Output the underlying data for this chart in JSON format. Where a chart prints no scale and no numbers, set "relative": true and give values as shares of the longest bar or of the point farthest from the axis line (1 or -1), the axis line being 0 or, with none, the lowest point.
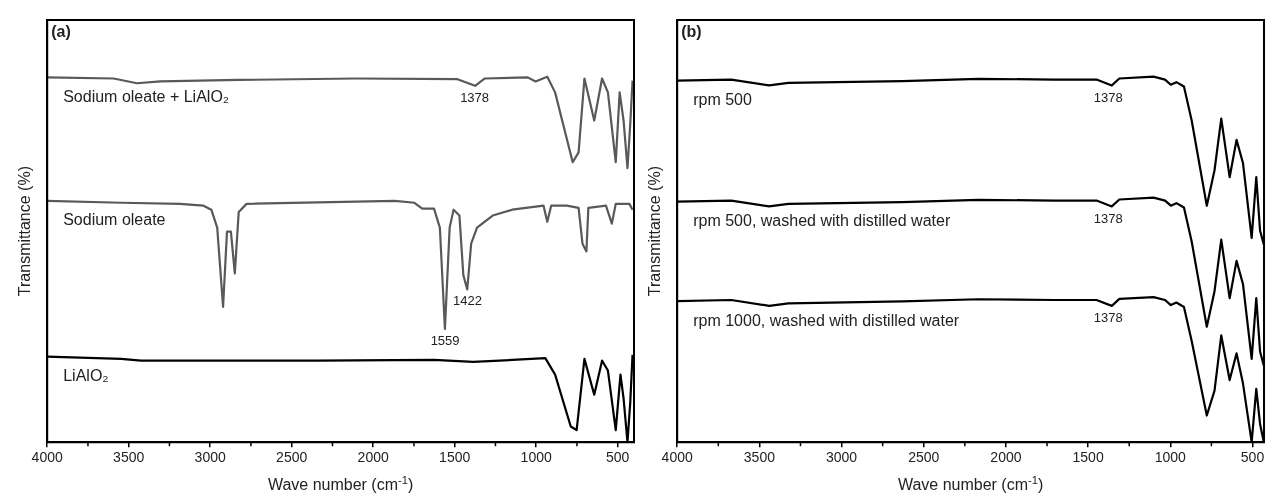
{
  "chart_data": [
    {
      "type": "line",
      "relative": true,
      "xlabel": "Wave number (cm$^{-1}$)",
      "ylabel": "Transmittance (%)",
      "xlim": [
        4000,
        400
      ],
      "xticks": [
        4000,
        {
          "value": 3750,
          "label": null
        },
        3500,
        {
          "value": 3250,
          "label": null
        },
        3000,
        {
          "value": 2750,
          "label": null
        },
        2500,
        {
          "value": 2250,
          "label": null
        },
        2000,
        {
          "value": 1750,
          "label": null
        },
        1500,
        {
          "value": 1250,
          "label": null
        },
        1000,
        {
          "value": 750,
          "label": null
        },
        500
      ],
      "annotations": [
        "(a)",
        {
          "text": "1378",
          "x": 1378,
          "y": 0.975
        },
        {
          "text": "1559",
          "x": 1559,
          "y": 0.31
        },
        {
          "text": "1422",
          "x": 1422,
          "y": 0.418
        }
      ],
      "series": [
        {
          "name": "Sodium oleate + LiAlO₂",
          "color": "#595959",
          "x": [
            4000,
            3592,
            3449,
            3305,
            2825,
            2106,
            1483,
            1375,
            1315,
            1052,
            1004,
            932,
            884,
            776,
            740,
            704,
            644,
            596,
            560,
            512,
            488,
            464,
            440,
            423,
            409
          ],
          "values": [
            0.998,
            0.995,
            0.982,
            0.987,
            0.991,
            0.995,
            0.993,
            0.975,
            0.995,
            0.998,
            0.987,
            1.0,
            0.957,
            0.766,
            0.793,
            0.995,
            0.88,
            0.995,
            0.957,
            0.766,
            0.957,
            0.88,
            0.75,
            0.87,
            0.989
          ]
        },
        {
          "name": "Sodium oleate",
          "color": "#595959",
          "x": [
            4000,
            3545,
            3185,
            3041,
            2993,
            2957,
            2921,
            2897,
            2873,
            2849,
            2825,
            2777,
            1867,
            1747,
            1699,
            1627,
            1591,
            1560,
            1531,
            1507,
            1471,
            1447,
            1423,
            1399,
            1363,
            1267,
            1147,
            955,
            932,
            908,
            812,
            740,
            716,
            692,
            680,
            572,
            536,
            512,
            428,
            409
          ],
          "values": [
            0.66,
            0.655,
            0.652,
            0.647,
            0.636,
            0.587,
            0.37,
            0.576,
            0.576,
            0.462,
            0.63,
            0.652,
            0.66,
            0.655,
            0.639,
            0.639,
            0.587,
            0.31,
            0.587,
            0.636,
            0.62,
            0.457,
            0.418,
            0.543,
            0.587,
            0.62,
            0.636,
            0.647,
            0.603,
            0.647,
            0.647,
            0.641,
            0.543,
            0.522,
            0.641,
            0.647,
            0.598,
            0.652,
            0.652,
            0.636
          ]
        },
        {
          "name": "LiAlO₂",
          "color": "#000000",
          "x": [
            4000,
            3545,
            3425,
            2346,
            1627,
            1387,
            1147,
            944,
            884,
            788,
            752,
            704,
            644,
            596,
            560,
            512,
            483,
            464,
            440,
            423,
            409
          ],
          "values": [
            0.234,
            0.228,
            0.223,
            0.223,
            0.225,
            0.22,
            0.225,
            0.23,
            0.185,
            0.043,
            0.033,
            0.228,
            0.13,
            0.223,
            0.196,
            0.033,
            0.185,
            0.12,
            0,
            0.109,
            0.239
          ]
        }
      ]
    },
    {
      "type": "line",
      "relative": true,
      "xlabel": "Wave number (cm$^{-1}$)",
      "ylabel": "Transmittance (%)",
      "xlim": [
        4000,
        430
      ],
      "xticks": [
        4000,
        {
          "value": 3750,
          "label": null
        },
        3500,
        {
          "value": 3250,
          "label": null
        },
        3000,
        {
          "value": 2750,
          "label": null
        },
        2500,
        {
          "value": 2250,
          "label": null
        },
        2000,
        {
          "value": 1750,
          "label": null
        },
        1500,
        {
          "value": 1250,
          "label": null
        },
        1000,
        {
          "value": 750,
          "label": null
        },
        500
      ],
      "annotations": [
        "(b)",
        {
          "text": "1378",
          "x": 1378,
          "y": 0.976
        },
        {
          "text": "1378",
          "x": 1378,
          "y": 0.645
        },
        {
          "text": "1378",
          "x": 1378,
          "y": 0.373
        }
      ],
      "series": [
        {
          "name": "rpm 500",
          "color": "#000000",
          "x": [
            4000,
            3671,
            3440,
            3324,
            2630,
            2167,
            1704,
            1449,
            1356,
            1310,
            1102,
            1032,
            997,
            963,
            917,
            870,
            778,
            731,
            690,
            639,
            597,
            558,
            505,
            477,
            454,
            431
          ],
          "values": [
            0.989,
            0.992,
            0.976,
            0.983,
            0.988,
            0.994,
            0.992,
            0.992,
            0.976,
            0.995,
            1.0,
            0.992,
            0.978,
            0.985,
            0.973,
            0.88,
            0.647,
            0.744,
            0.885,
            0.725,
            0.827,
            0.764,
            0.559,
            0.725,
            0.579,
            0.54
          ]
        },
        {
          "name": "rpm 500, washed with distilled water",
          "color": "#000000",
          "x": [
            4000,
            3671,
            3440,
            3324,
            2630,
            2167,
            1704,
            1449,
            1356,
            1310,
            1102,
            1032,
            997,
            963,
            917,
            870,
            778,
            731,
            690,
            639,
            597,
            558,
            505,
            477,
            454,
            431
          ],
          "values": [
            0.658,
            0.661,
            0.645,
            0.652,
            0.657,
            0.663,
            0.661,
            0.661,
            0.645,
            0.664,
            0.669,
            0.661,
            0.647,
            0.654,
            0.642,
            0.549,
            0.316,
            0.413,
            0.554,
            0.394,
            0.496,
            0.433,
            0.228,
            0.394,
            0.248,
            0.209
          ]
        },
        {
          "name": "rpm 1000, washed with distilled water",
          "color": "#000000",
          "x": [
            4000,
            3671,
            3440,
            3324,
            2630,
            2167,
            1704,
            1449,
            1356,
            1310,
            1102,
            1032,
            997,
            963,
            917,
            870,
            778,
            731,
            690,
            639,
            597,
            558,
            505,
            477,
            454,
            431
          ],
          "values": [
            0.386,
            0.389,
            0.373,
            0.38,
            0.385,
            0.391,
            0.389,
            0.389,
            0.373,
            0.392,
            0.397,
            0.389,
            0.375,
            0.382,
            0.37,
            0.277,
            0.073,
            0.141,
            0.292,
            0.17,
            0.243,
            0.161,
            0,
            0.146,
            0.05,
            0
          ]
        }
      ]
    }
  ]
}
